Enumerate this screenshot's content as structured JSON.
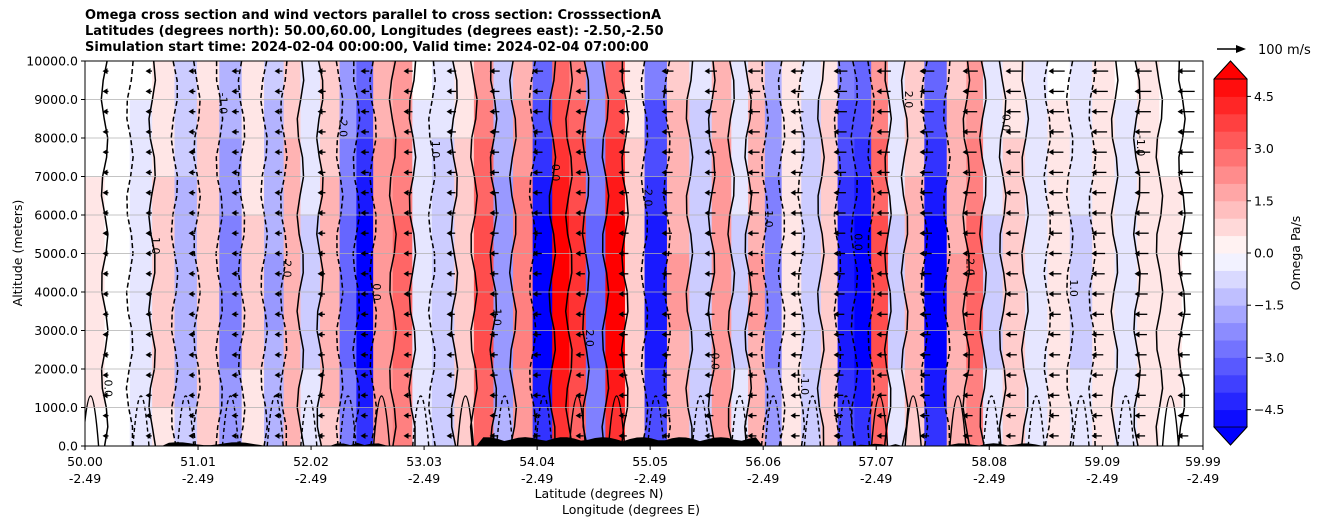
{
  "chart_data": {
    "type": "heatmap",
    "title_lines": [
      "Omega cross section and wind vectors parallel to cross section: CrosssectionA",
      "Latitudes (degrees north): 50.00,60.00, Longitudes (degrees east): -2.50,-2.50",
      "Simulation start time: 2024-02-04 00:00:00, Valid time: 2024-02-04 07:00:00"
    ],
    "ylabel": "Altitude (meters)",
    "xlabel_lines": [
      "Latitude (degrees N)",
      "Longitude (degrees E)"
    ],
    "ylim": [
      0,
      10000
    ],
    "y_ticks": [
      "0.0",
      "1000.0",
      "2000.0",
      "3000.0",
      "4000.0",
      "5000.0",
      "6000.0",
      "7000.0",
      "8000.0",
      "9000.0",
      "10000.0"
    ],
    "x_ticks": [
      {
        "lat": "50.00",
        "lon": "-2.49",
        "value": 50.0
      },
      {
        "lat": "51.01",
        "lon": "-2.49",
        "value": 51.01
      },
      {
        "lat": "52.02",
        "lon": "-2.49",
        "value": 52.02
      },
      {
        "lat": "53.03",
        "lon": "-2.49",
        "value": 53.03
      },
      {
        "lat": "54.04",
        "lon": "-2.49",
        "value": 54.04
      },
      {
        "lat": "55.05",
        "lon": "-2.49",
        "value": 55.05
      },
      {
        "lat": "56.06",
        "lon": "-2.49",
        "value": 56.06
      },
      {
        "lat": "57.07",
        "lon": "-2.49",
        "value": 57.07
      },
      {
        "lat": "58.08",
        "lon": "-2.49",
        "value": 58.08
      },
      {
        "lat": "59.09",
        "lon": "-2.49",
        "value": 59.09
      },
      {
        "lat": "59.99",
        "lon": "-2.49",
        "value": 59.99
      }
    ],
    "xlim": [
      50.0,
      59.99
    ],
    "grid": true,
    "colorbar": {
      "label": "Omega Pa/s",
      "range": [
        -5.0,
        5.0
      ],
      "ticks": [
        "4.5",
        "3.0",
        "1.5",
        "0.0",
        "−1.5",
        "−3.0",
        "−4.5"
      ],
      "tick_values": [
        4.5,
        3.0,
        1.5,
        0.0,
        -1.5,
        -3.0,
        -4.5
      ],
      "extend": "both"
    },
    "quiver_key": {
      "label": "100 m/s",
      "value": 100
    },
    "omega_columns": [
      {
        "lat": 50.05,
        "omega": 0.3
      },
      {
        "lat": 50.3,
        "omega": -0.2
      },
      {
        "lat": 50.5,
        "omega": -0.4
      },
      {
        "lat": 50.7,
        "omega": 0.9
      },
      {
        "lat": 50.9,
        "omega": -1.5
      },
      {
        "lat": 51.1,
        "omega": 1.2
      },
      {
        "lat": 51.3,
        "omega": -2.4
      },
      {
        "lat": 51.5,
        "omega": 0.8
      },
      {
        "lat": 51.7,
        "omega": -1.8
      },
      {
        "lat": 51.85,
        "omega": 1.6
      },
      {
        "lat": 52.0,
        "omega": -0.8
      },
      {
        "lat": 52.2,
        "omega": 1.4
      },
      {
        "lat": 52.35,
        "omega": -3.0
      },
      {
        "lat": 52.5,
        "omega": -5.0
      },
      {
        "lat": 52.65,
        "omega": 2.2
      },
      {
        "lat": 52.85,
        "omega": 3.0
      },
      {
        "lat": 53.0,
        "omega": -0.4
      },
      {
        "lat": 53.2,
        "omega": -1.0
      },
      {
        "lat": 53.4,
        "omega": 1.0
      },
      {
        "lat": 53.55,
        "omega": 3.5
      },
      {
        "lat": 53.75,
        "omega": -2.0
      },
      {
        "lat": 53.9,
        "omega": 2.5
      },
      {
        "lat": 54.1,
        "omega": -5.0
      },
      {
        "lat": 54.25,
        "omega": 5.0
      },
      {
        "lat": 54.4,
        "omega": 4.0
      },
      {
        "lat": 54.55,
        "omega": -3.0
      },
      {
        "lat": 54.75,
        "omega": 5.0
      },
      {
        "lat": 54.9,
        "omega": 1.0
      },
      {
        "lat": 55.1,
        "omega": -4.5
      },
      {
        "lat": 55.3,
        "omega": 1.8
      },
      {
        "lat": 55.5,
        "omega": -1.2
      },
      {
        "lat": 55.7,
        "omega": 2.2
      },
      {
        "lat": 55.85,
        "omega": -0.8
      },
      {
        "lat": 56.0,
        "omega": 1.8
      },
      {
        "lat": 56.15,
        "omega": -2.5
      },
      {
        "lat": 56.3,
        "omega": 0.6
      },
      {
        "lat": 56.5,
        "omega": -1.2
      },
      {
        "lat": 56.65,
        "omega": 1.2
      },
      {
        "lat": 56.8,
        "omega": -4.5
      },
      {
        "lat": 56.95,
        "omega": -5.0
      },
      {
        "lat": 57.1,
        "omega": 3.5
      },
      {
        "lat": 57.25,
        "omega": -0.8
      },
      {
        "lat": 57.4,
        "omega": 1.5
      },
      {
        "lat": 57.6,
        "omega": -5.0
      },
      {
        "lat": 57.8,
        "omega": 1.8
      },
      {
        "lat": 57.95,
        "omega": 3.0
      },
      {
        "lat": 58.1,
        "omega": -0.8
      },
      {
        "lat": 58.3,
        "omega": 1.0
      },
      {
        "lat": 58.5,
        "omega": -0.6
      },
      {
        "lat": 58.7,
        "omega": 0.4
      },
      {
        "lat": 58.9,
        "omega": -0.8
      },
      {
        "lat": 59.1,
        "omega": 0.5
      },
      {
        "lat": 59.3,
        "omega": -0.4
      },
      {
        "lat": 59.5,
        "omega": 0.6
      },
      {
        "lat": 59.7,
        "omega": 0.3
      },
      {
        "lat": 59.9,
        "omega": -0.2
      }
    ],
    "contour_labels": [
      "0.0",
      "1.0",
      "-1.0",
      "2.0",
      "-2.0",
      "0.0",
      "1.0",
      "-1.0",
      "0.0",
      "2.0",
      "-2.0",
      "0.0",
      "1.0",
      "-1.0",
      "0.0",
      "2.0",
      "-2.0",
      "0.0",
      "1.0",
      "-1.0"
    ]
  }
}
